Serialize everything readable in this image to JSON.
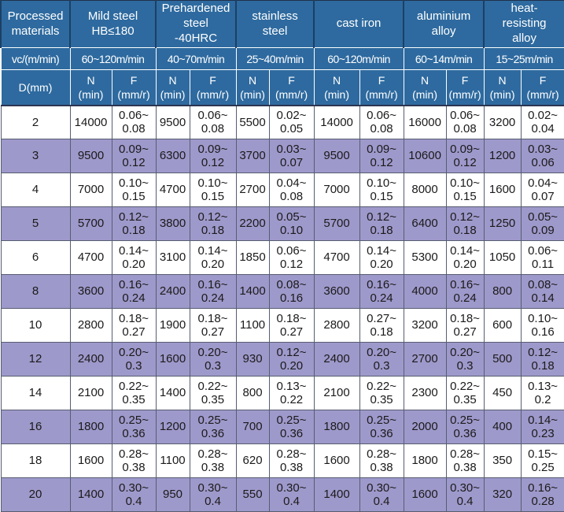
{
  "colors": {
    "header_bg": "#2e6a9f",
    "header_text": "#ffffff",
    "stripe_bg": "#9e99cb",
    "row_bg": "#ffffff",
    "data_text": "#1a1a1a"
  },
  "table": {
    "corner": {
      "processed_materials": "Processed\nmaterials",
      "vc_label": "vc/(m/min)",
      "d_label": "D(mm)"
    },
    "materials": [
      {
        "name": "Mild steel\nHB≤180",
        "speed": "60~120m/min"
      },
      {
        "name": "Prehardened\nsteel\n-40HRC",
        "speed": "40~70m/min"
      },
      {
        "name": "stainless\nsteel",
        "speed": "25~40m/min"
      },
      {
        "name": "cast iron",
        "speed": "60~120m/min"
      },
      {
        "name": "aluminium\nalloy",
        "speed": "60~14m/min"
      },
      {
        "name": "heat-\nresisting\nalloy",
        "speed": "15~25m/min"
      }
    ],
    "sub_headers": {
      "n": "N\n(min)",
      "f": "F\n(mm/r)"
    },
    "rows": [
      {
        "d": "2",
        "cells": [
          "14000",
          "0.06~\n0.08",
          "9500",
          "0.06~\n0.08",
          "5500",
          "0.02~\n0.05",
          "14000",
          "0.06~\n0.08",
          "16000",
          "0.06~\n0.08",
          "3200",
          "0.02~\n0.04"
        ]
      },
      {
        "d": "3",
        "cells": [
          "9500",
          "0.09~\n0.12",
          "6300",
          "0.09~\n0.12",
          "3700",
          "0.03~\n0.07",
          "9500",
          "0.09~\n0.12",
          "10600",
          "0.09~\n0.12",
          "1200",
          "0.03~\n0.06"
        ]
      },
      {
        "d": "4",
        "cells": [
          "7000",
          "0.10~\n0.15",
          "4700",
          "0.10~\n0.15",
          "2700",
          "0.04~\n0.08",
          "7000",
          "0.10~\n0.15",
          "8000",
          "0.10~\n0.15",
          "1600",
          "0.04~\n0.07"
        ]
      },
      {
        "d": "5",
        "cells": [
          "5700",
          "0.12~\n0.18",
          "3800",
          "0.12~\n0.18",
          "2200",
          "0.05~\n0.10",
          "5700",
          "0.12~\n0.18",
          "6400",
          "0.12~\n0.18",
          "1250",
          "0.05~\n0.09"
        ]
      },
      {
        "d": "6",
        "cells": [
          "4700",
          "0.14~\n0.20",
          "3100",
          "0.14~\n0.20",
          "1850",
          "0.06~\n0.12",
          "4700",
          "0.14~\n0.20",
          "5300",
          "0.14~\n0.20",
          "1050",
          "0.06~\n0.11"
        ]
      },
      {
        "d": "8",
        "cells": [
          "3600",
          "0.16~\n0.24",
          "2400",
          "0.16~\n0.24",
          "1400",
          "0.08~\n0.16",
          "3600",
          "0.16~\n0.24",
          "4000",
          "0.16~\n0.24",
          "800",
          "0.08~\n0.14"
        ]
      },
      {
        "d": "10",
        "cells": [
          "2800",
          "0.18~\n0.27",
          "1900",
          "0.18~\n0.27",
          "1100",
          "0.18~\n0.27",
          "2800",
          "0.27~\n0.18",
          "3200",
          "0.18~\n0.27",
          "600",
          "0.10~\n0.16"
        ]
      },
      {
        "d": "12",
        "cells": [
          "2400",
          "0.20~\n0.3",
          "1600",
          "0.20~\n0.3",
          "930",
          "0.12~\n0.20",
          "2400",
          "0.20~\n0.3",
          "2700",
          "0.20~\n0.3",
          "500",
          "0.12~\n0.18"
        ]
      },
      {
        "d": "14",
        "cells": [
          "2100",
          "0.22~\n0.35",
          "1400",
          "0.22~\n0.35",
          "800",
          "0.13~\n0.22",
          "2100",
          "0.22~\n0.35",
          "2300",
          "0.22~\n0.35",
          "450",
          "0.13~\n0.2"
        ]
      },
      {
        "d": "16",
        "cells": [
          "1800",
          "0.25~\n0.36",
          "1200",
          "0.25~\n0.36",
          "700",
          "0.25~\n0.36",
          "1800",
          "0.25~\n0.36",
          "2000",
          "0.25~\n0.36",
          "400",
          "0.14~\n0.23"
        ]
      },
      {
        "d": "18",
        "cells": [
          "1600",
          "0.28~\n0.38",
          "1100",
          "0.28~\n0.38",
          "620",
          "0.28~\n0.38",
          "1600",
          "0.28~\n0.38",
          "1800",
          "0.28~\n0.38",
          "350",
          "0.15~\n0.25"
        ]
      },
      {
        "d": "20",
        "cells": [
          "1400",
          "0.30~\n0.4",
          "950",
          "0.30~\n0.4",
          "550",
          "0.30~\n0.4",
          "1400",
          "0.30~\n0.4",
          "1600",
          "0.30~\n0.4",
          "320",
          "0.16~\n0.28"
        ]
      }
    ]
  }
}
